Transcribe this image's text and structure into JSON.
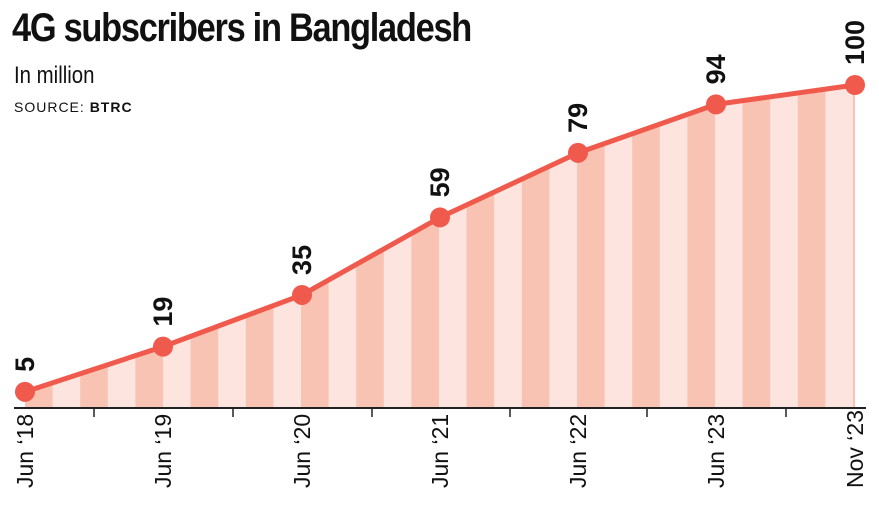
{
  "chart_data": {
    "type": "line",
    "title": "4G subscribers in Bangladesh",
    "subtitle": "In million",
    "source_label": "SOURCE:",
    "source_value": "BTRC",
    "categories": [
      "Jun ‘18",
      "Jun ‘19",
      "Jun ‘20",
      "Jun ‘21",
      "Jun ‘22",
      "Jun ‘23",
      "Nov ‘23"
    ],
    "values": [
      5,
      19,
      35,
      59,
      79,
      94,
      100
    ],
    "data_labels": [
      "5",
      "19",
      "35",
      "59",
      "79",
      "94",
      "100"
    ],
    "ylim": [
      0,
      100
    ],
    "colors": {
      "line": "#f05a4c",
      "marker": "#f05a4c",
      "stripe_dark": "#f9c3b3",
      "stripe_light": "#fde4df",
      "axis": "#222222"
    }
  }
}
